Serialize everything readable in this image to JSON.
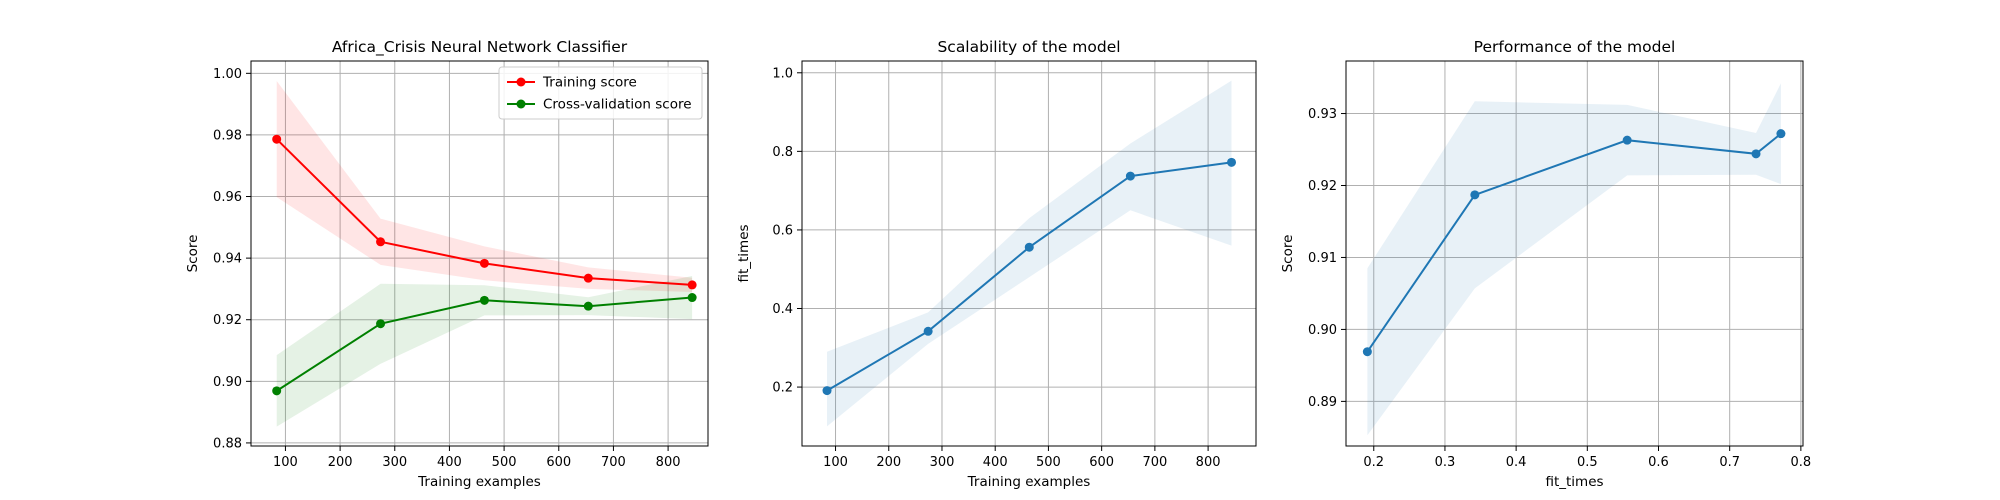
{
  "chart_data": [
    {
      "type": "line",
      "title": "Africa_Crisis Neural Network Classifier",
      "xlabel": "Training examples",
      "ylabel": "Score",
      "xlim": [
        37,
        873
      ],
      "ylim": [
        0.879,
        1.004
      ],
      "xticks": [
        100,
        200,
        300,
        400,
        500,
        600,
        700,
        800
      ],
      "yticks": [
        0.88,
        0.9,
        0.92,
        0.94,
        0.96,
        0.98,
        1.0
      ],
      "ytick_decimals": 2,
      "grid": true,
      "legend_position": "top-right",
      "series": [
        {
          "name": "Training score",
          "color": "#ff0000",
          "x": [
            84,
            274,
            464,
            654,
            844
          ],
          "values": [
            0.9786,
            0.9453,
            0.9383,
            0.9335,
            0.9313
          ],
          "lower": [
            0.9598,
            0.9378,
            0.9328,
            0.93,
            0.929
          ],
          "upper": [
            0.9975,
            0.9528,
            0.9438,
            0.937,
            0.9336
          ]
        },
        {
          "name": "Cross-validation score",
          "color": "#008000",
          "x": [
            84,
            274,
            464,
            654,
            844
          ],
          "values": [
            0.8969,
            0.9187,
            0.9263,
            0.9244,
            0.9272
          ],
          "lower": [
            0.8853,
            0.9057,
            0.9214,
            0.9215,
            0.9202
          ],
          "upper": [
            0.9085,
            0.9317,
            0.9312,
            0.9273,
            0.9342
          ]
        }
      ]
    },
    {
      "type": "line",
      "title": "Scalability of the model",
      "xlabel": "Training examples",
      "ylabel": "fit_times",
      "xlim": [
        37,
        890
      ],
      "ylim": [
        0.05,
        1.03
      ],
      "xticks": [
        100,
        200,
        300,
        400,
        500,
        600,
        700,
        800
      ],
      "yticks": [
        0.2,
        0.4,
        0.6,
        0.8,
        1.0
      ],
      "ytick_decimals": 1,
      "grid": true,
      "series": [
        {
          "color": "#1f77b4",
          "x": [
            84,
            274,
            464,
            654,
            844
          ],
          "values": [
            0.191,
            0.342,
            0.556,
            0.737,
            0.772
          ],
          "lower": [
            0.1,
            0.31,
            0.48,
            0.65,
            0.56
          ],
          "upper": [
            0.29,
            0.39,
            0.63,
            0.82,
            0.98
          ]
        }
      ]
    },
    {
      "type": "line",
      "title": "Performance of the model",
      "xlabel": "fit_times",
      "ylabel": "Score",
      "xlim": [
        0.161,
        0.803
      ],
      "ylim": [
        0.8838,
        0.9373
      ],
      "xticks": [
        0.2,
        0.3,
        0.4,
        0.5,
        0.6,
        0.7,
        0.8
      ],
      "yticks": [
        0.89,
        0.9,
        0.91,
        0.92,
        0.93
      ],
      "xtick_decimals": 1,
      "ytick_decimals": 2,
      "grid": true,
      "series": [
        {
          "color": "#1f77b4",
          "x": [
            0.191,
            0.342,
            0.556,
            0.737,
            0.772
          ],
          "values": [
            0.8969,
            0.9187,
            0.9263,
            0.9244,
            0.9272
          ],
          "lower": [
            0.8853,
            0.9057,
            0.9214,
            0.9215,
            0.9202
          ],
          "upper": [
            0.9085,
            0.9317,
            0.9312,
            0.9273,
            0.9342
          ]
        }
      ]
    }
  ]
}
